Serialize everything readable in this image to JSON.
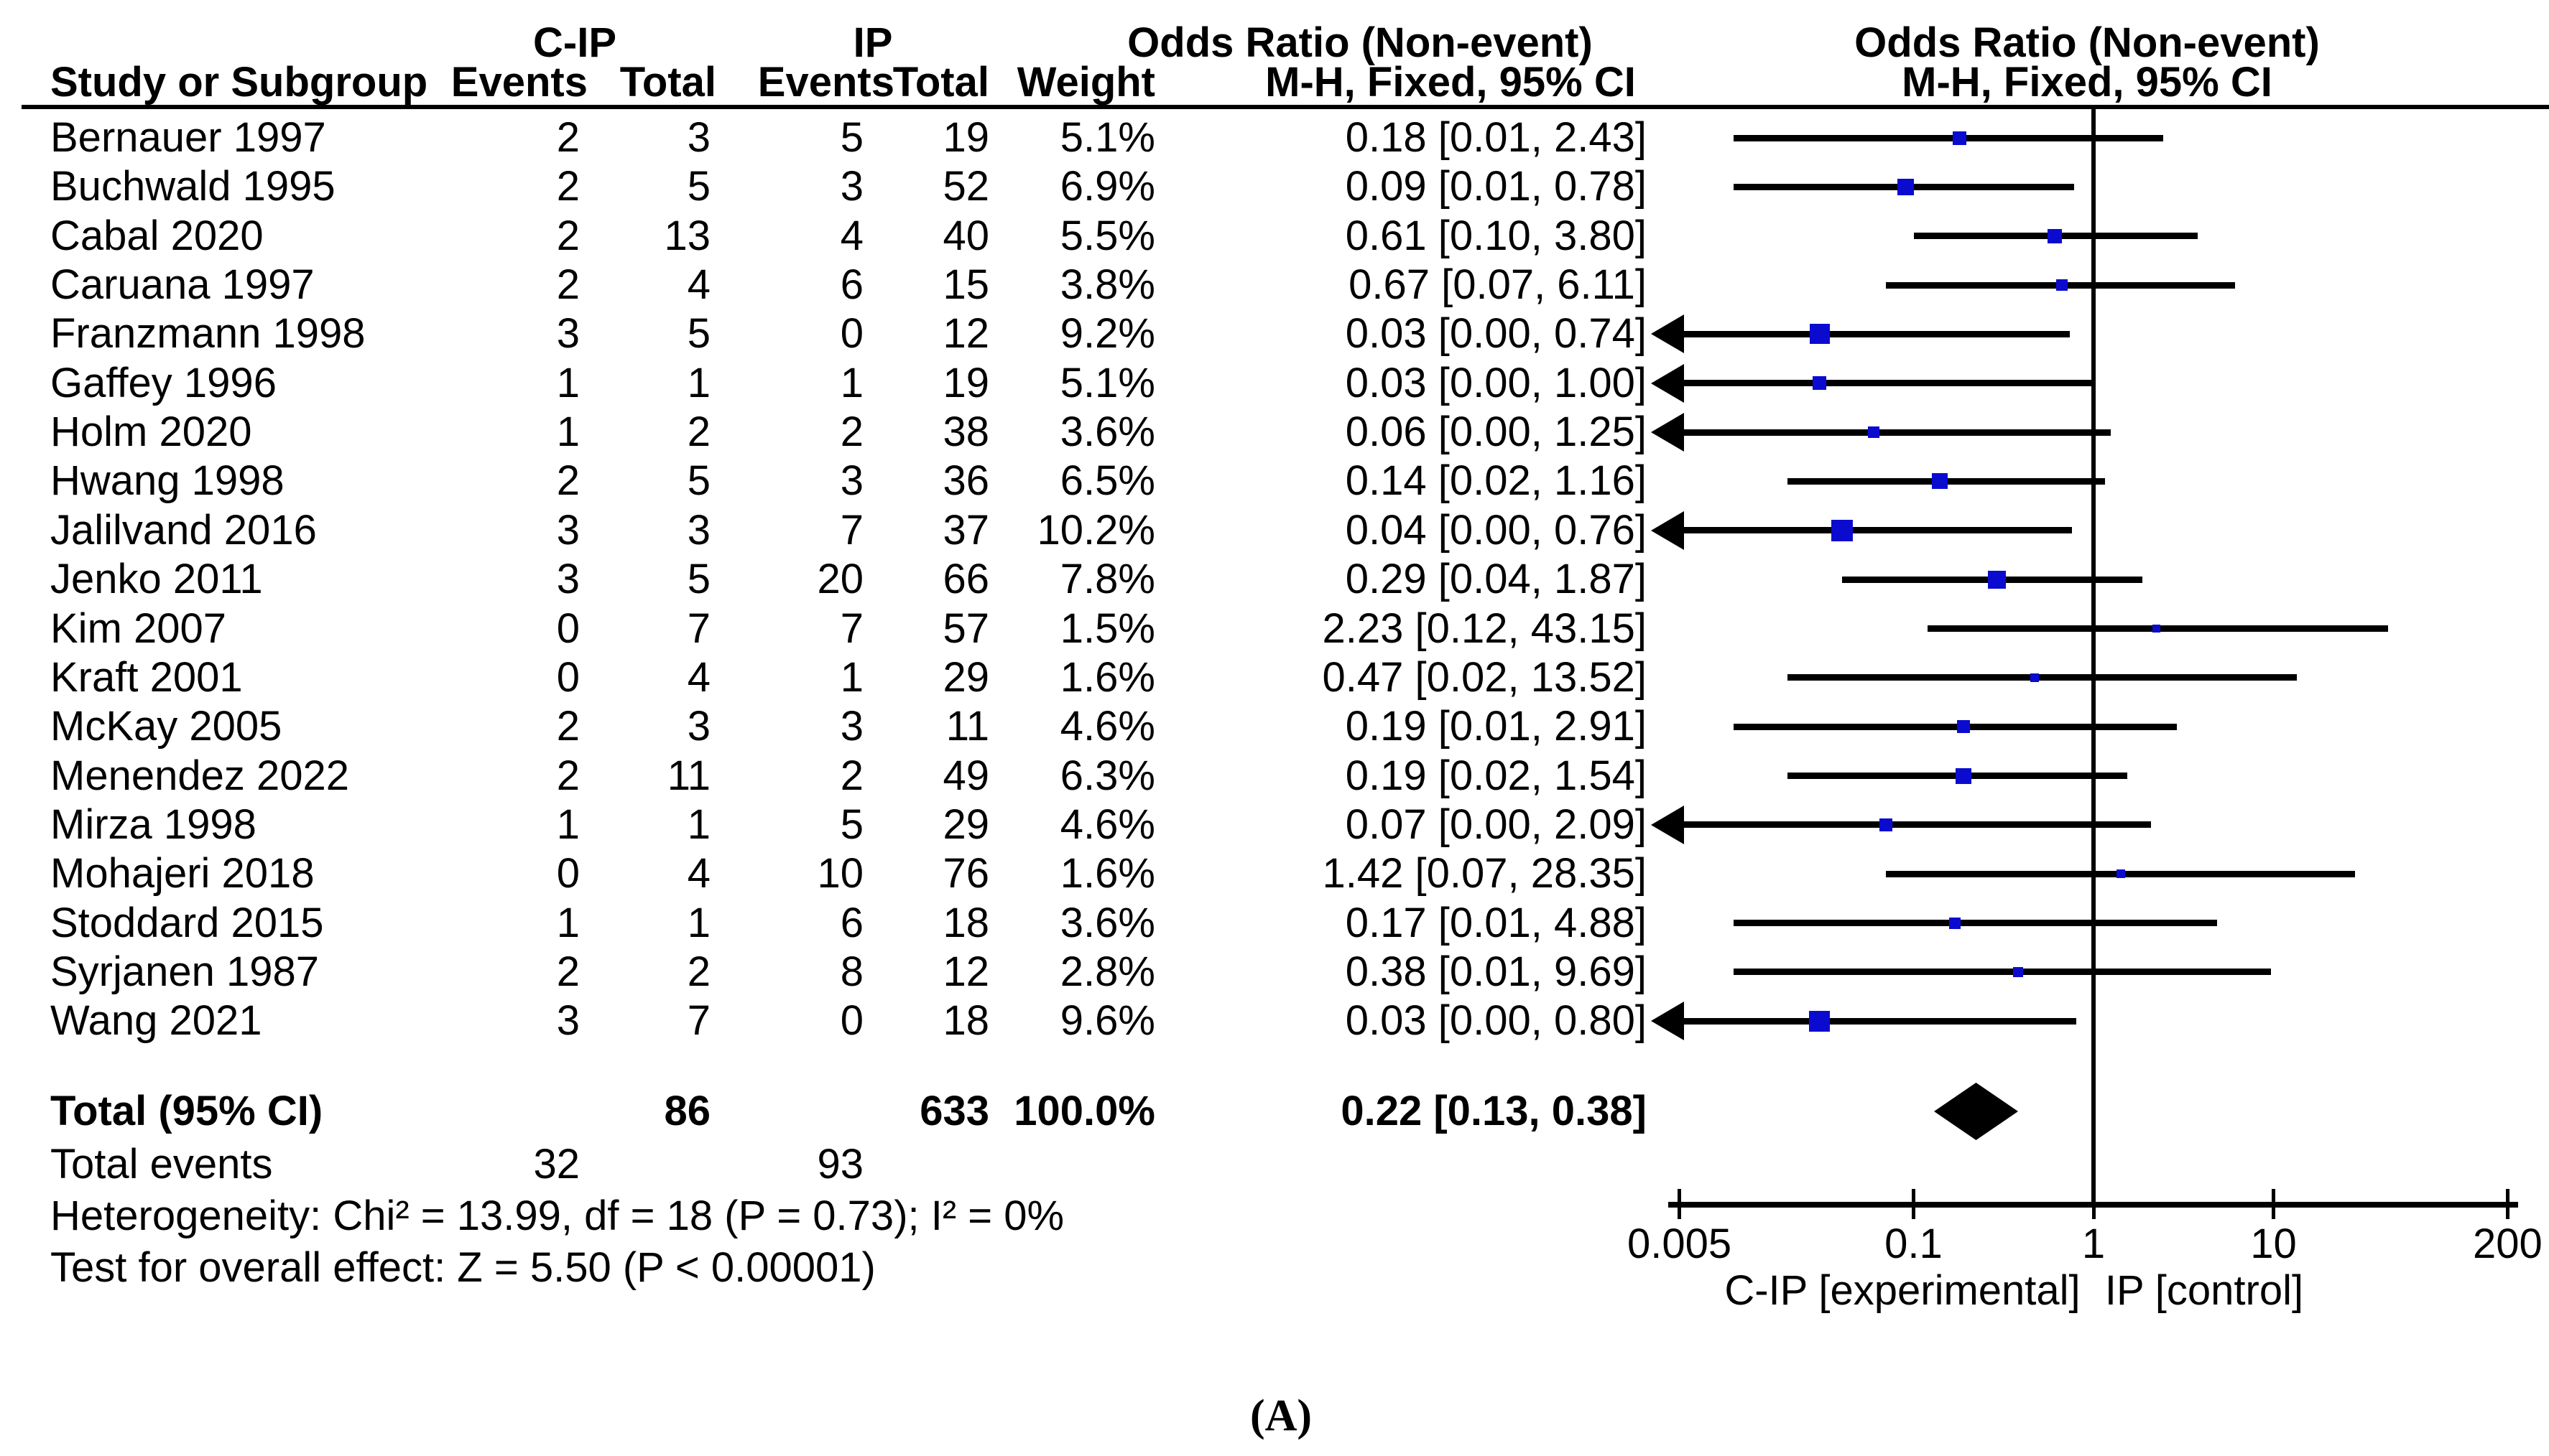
{
  "header": {
    "group1_label": "C-IP",
    "group2_label": "IP",
    "study_col": "Study or Subgroup",
    "events_col_1": "Events",
    "total_col_1": "Total",
    "events_col_2": "Events",
    "total_col_2": "Total",
    "weight_col": "Weight",
    "or_col_title": "Odds Ratio (Non-event)",
    "or_col_subtitle": "M-H, Fixed, 95% CI",
    "plot_col_title": "Odds Ratio (Non-event)",
    "plot_col_subtitle": "M-H, Fixed, 95% CI"
  },
  "studies": [
    {
      "name": "Bernauer 1997",
      "events1": "2",
      "total1": "3",
      "events2": "5",
      "total2": "19",
      "weight": "5.1%",
      "weight_value": 5.1,
      "or_ci": "0.18 [0.01, 2.43]",
      "or": 0.18,
      "ci_low": 0.01,
      "ci_high": 2.43,
      "clipped_left": false
    },
    {
      "name": "Buchwald 1995",
      "events1": "2",
      "total1": "5",
      "events2": "3",
      "total2": "52",
      "weight": "6.9%",
      "weight_value": 6.9,
      "or_ci": "0.09 [0.01, 0.78]",
      "or": 0.09,
      "ci_low": 0.01,
      "ci_high": 0.78,
      "clipped_left": false
    },
    {
      "name": "Cabal 2020",
      "events1": "2",
      "total1": "13",
      "events2": "4",
      "total2": "40",
      "weight": "5.5%",
      "weight_value": 5.5,
      "or_ci": "0.61 [0.10, 3.80]",
      "or": 0.61,
      "ci_low": 0.1,
      "ci_high": 3.8,
      "clipped_left": false
    },
    {
      "name": "Caruana 1997",
      "events1": "2",
      "total1": "4",
      "events2": "6",
      "total2": "15",
      "weight": "3.8%",
      "weight_value": 3.8,
      "or_ci": "0.67 [0.07, 6.11]",
      "or": 0.67,
      "ci_low": 0.07,
      "ci_high": 6.11,
      "clipped_left": false
    },
    {
      "name": "Franzmann 1998",
      "events1": "3",
      "total1": "5",
      "events2": "0",
      "total2": "12",
      "weight": "9.2%",
      "weight_value": 9.2,
      "or_ci": "0.03 [0.00, 0.74]",
      "or": 0.03,
      "ci_low": 0.0,
      "ci_high": 0.74,
      "clipped_left": true
    },
    {
      "name": "Gaffey 1996",
      "events1": "1",
      "total1": "1",
      "events2": "1",
      "total2": "19",
      "weight": "5.1%",
      "weight_value": 5.1,
      "or_ci": "0.03 [0.00, 1.00]",
      "or": 0.03,
      "ci_low": 0.0,
      "ci_high": 1.0,
      "clipped_left": true
    },
    {
      "name": "Holm 2020",
      "events1": "1",
      "total1": "2",
      "events2": "2",
      "total2": "38",
      "weight": "3.6%",
      "weight_value": 3.6,
      "or_ci": "0.06 [0.00, 1.25]",
      "or": 0.06,
      "ci_low": 0.0,
      "ci_high": 1.25,
      "clipped_left": true
    },
    {
      "name": "Hwang 1998",
      "events1": "2",
      "total1": "5",
      "events2": "3",
      "total2": "36",
      "weight": "6.5%",
      "weight_value": 6.5,
      "or_ci": "0.14 [0.02, 1.16]",
      "or": 0.14,
      "ci_low": 0.02,
      "ci_high": 1.16,
      "clipped_left": false
    },
    {
      "name": "Jalilvand 2016",
      "events1": "3",
      "total1": "3",
      "events2": "7",
      "total2": "37",
      "weight": "10.2%",
      "weight_value": 10.2,
      "or_ci": "0.04 [0.00, 0.76]",
      "or": 0.04,
      "ci_low": 0.0,
      "ci_high": 0.76,
      "clipped_left": true
    },
    {
      "name": "Jenko 2011",
      "events1": "3",
      "total1": "5",
      "events2": "20",
      "total2": "66",
      "weight": "7.8%",
      "weight_value": 7.8,
      "or_ci": "0.29 [0.04, 1.87]",
      "or": 0.29,
      "ci_low": 0.04,
      "ci_high": 1.87,
      "clipped_left": false
    },
    {
      "name": "Kim 2007",
      "events1": "0",
      "total1": "7",
      "events2": "7",
      "total2": "57",
      "weight": "1.5%",
      "weight_value": 1.5,
      "or_ci": "2.23 [0.12, 43.15]",
      "or": 2.23,
      "ci_low": 0.12,
      "ci_high": 43.15,
      "clipped_left": false
    },
    {
      "name": "Kraft 2001",
      "events1": "0",
      "total1": "4",
      "events2": "1",
      "total2": "29",
      "weight": "1.6%",
      "weight_value": 1.6,
      "or_ci": "0.47 [0.02, 13.52]",
      "or": 0.47,
      "ci_low": 0.02,
      "ci_high": 13.52,
      "clipped_left": false
    },
    {
      "name": "McKay 2005",
      "events1": "2",
      "total1": "3",
      "events2": "3",
      "total2": "11",
      "weight": "4.6%",
      "weight_value": 4.6,
      "or_ci": "0.19 [0.01, 2.91]",
      "or": 0.19,
      "ci_low": 0.01,
      "ci_high": 2.91,
      "clipped_left": false
    },
    {
      "name": "Menendez 2022",
      "events1": "2",
      "total1": "11",
      "events2": "2",
      "total2": "49",
      "weight": "6.3%",
      "weight_value": 6.3,
      "or_ci": "0.19 [0.02, 1.54]",
      "or": 0.19,
      "ci_low": 0.02,
      "ci_high": 1.54,
      "clipped_left": false
    },
    {
      "name": "Mirza 1998",
      "events1": "1",
      "total1": "1",
      "events2": "5",
      "total2": "29",
      "weight": "4.6%",
      "weight_value": 4.6,
      "or_ci": "0.07 [0.00, 2.09]",
      "or": 0.07,
      "ci_low": 0.0,
      "ci_high": 2.09,
      "clipped_left": true
    },
    {
      "name": "Mohajeri 2018",
      "events1": "0",
      "total1": "4",
      "events2": "10",
      "total2": "76",
      "weight": "1.6%",
      "weight_value": 1.6,
      "or_ci": "1.42 [0.07, 28.35]",
      "or": 1.42,
      "ci_low": 0.07,
      "ci_high": 28.35,
      "clipped_left": false
    },
    {
      "name": "Stoddard 2015",
      "events1": "1",
      "total1": "1",
      "events2": "6",
      "total2": "18",
      "weight": "3.6%",
      "weight_value": 3.6,
      "or_ci": "0.17 [0.01, 4.88]",
      "or": 0.17,
      "ci_low": 0.01,
      "ci_high": 4.88,
      "clipped_left": false
    },
    {
      "name": "Syrjanen 1987",
      "events1": "2",
      "total1": "2",
      "events2": "8",
      "total2": "12",
      "weight": "2.8%",
      "weight_value": 2.8,
      "or_ci": "0.38 [0.01, 9.69]",
      "or": 0.38,
      "ci_low": 0.01,
      "ci_high": 9.69,
      "clipped_left": false
    },
    {
      "name": "Wang 2021",
      "events1": "3",
      "total1": "7",
      "events2": "0",
      "total2": "18",
      "weight": "9.6%",
      "weight_value": 9.6,
      "or_ci": "0.03 [0.00, 0.80]",
      "or": 0.03,
      "ci_low": 0.0,
      "ci_high": 0.8,
      "clipped_left": true
    }
  ],
  "total_row": {
    "label": "Total (95% CI)",
    "total1": "86",
    "total2": "633",
    "weight": "100.0%",
    "or_ci": "0.22 [0.13, 0.38]",
    "or": 0.22,
    "ci_low": 0.13,
    "ci_high": 0.38
  },
  "total_events_row": {
    "label": "Total events",
    "events1": "32",
    "events2": "93"
  },
  "footnotes": {
    "heterogeneity": "Heterogeneity: Chi² = 13.99, df = 18 (P = 0.73); I² = 0%",
    "overall_effect": "Test for overall effect: Z = 5.50 (P < 0.00001)"
  },
  "axis": {
    "scale": "log",
    "min": 0.005,
    "max": 200,
    "null_value": 1,
    "ticks": [
      {
        "value": 0.005,
        "label": "0.005"
      },
      {
        "value": 0.1,
        "label": "0.1"
      },
      {
        "value": 1,
        "label": "1"
      },
      {
        "value": 10,
        "label": "10"
      },
      {
        "value": 200,
        "label": "200"
      }
    ],
    "left_label": "C-IP [experimental]",
    "right_label": "IP [control]"
  },
  "caption": "(A)",
  "colors": {
    "marker_blue": "#0b0bd0",
    "diamond_black": "#000000",
    "line_black": "#000000"
  },
  "chart_data": {
    "type": "scatter",
    "subtype": "forest_plot",
    "title": "Odds Ratio (Non-event), M-H, Fixed, 95% CI — C-IP vs IP",
    "xlabel_left": "C-IP [experimental]",
    "xlabel_right": "IP [control]",
    "x_scale": "log",
    "xlim": [
      0.005,
      200
    ],
    "x_ticks": [
      0.005,
      0.1,
      1,
      10,
      200
    ],
    "categories": [
      "Bernauer 1997",
      "Buchwald 1995",
      "Cabal 2020",
      "Caruana 1997",
      "Franzmann 1998",
      "Gaffey 1996",
      "Holm 2020",
      "Hwang 1998",
      "Jalilvand 2016",
      "Jenko 2011",
      "Kim 2007",
      "Kraft 2001",
      "McKay 2005",
      "Menendez 2022",
      "Mirza 1998",
      "Mohajeri 2018",
      "Stoddard 2015",
      "Syrjanen 1987",
      "Wang 2021"
    ],
    "series": [
      {
        "name": "Odds Ratio",
        "values": [
          0.18,
          0.09,
          0.61,
          0.67,
          0.03,
          0.03,
          0.06,
          0.14,
          0.04,
          0.29,
          2.23,
          0.47,
          0.19,
          0.19,
          0.07,
          1.42,
          0.17,
          0.38,
          0.03
        ]
      },
      {
        "name": "CI lower",
        "values": [
          0.01,
          0.01,
          0.1,
          0.07,
          0.0,
          0.0,
          0.0,
          0.02,
          0.0,
          0.04,
          0.12,
          0.02,
          0.01,
          0.02,
          0.0,
          0.07,
          0.01,
          0.01,
          0.0
        ]
      },
      {
        "name": "CI upper",
        "values": [
          2.43,
          0.78,
          3.8,
          6.11,
          0.74,
          1.0,
          1.25,
          1.16,
          0.76,
          1.87,
          43.15,
          13.52,
          2.91,
          1.54,
          2.09,
          28.35,
          4.88,
          9.69,
          0.8
        ]
      },
      {
        "name": "Weight %",
        "values": [
          5.1,
          6.9,
          5.5,
          3.8,
          9.2,
          5.1,
          3.6,
          6.5,
          10.2,
          7.8,
          1.5,
          1.6,
          4.6,
          6.3,
          4.6,
          1.6,
          3.6,
          2.8,
          9.6
        ]
      }
    ],
    "summary": {
      "label": "Total (95% CI)",
      "or": 0.22,
      "ci_low": 0.13,
      "ci_high": 0.38,
      "weight": 100.0,
      "events_experimental": 32,
      "total_experimental": 86,
      "events_control": 93,
      "total_control": 633,
      "heterogeneity": "Chi² = 13.99, df = 18 (P = 0.73); I² = 0%",
      "overall_effect": "Z = 5.50 (P < 0.00001)"
    },
    "legend_position": "none",
    "grid": false
  }
}
